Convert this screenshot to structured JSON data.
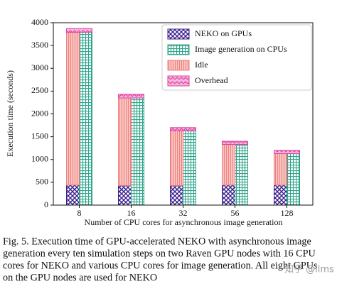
{
  "chart_data": {
    "type": "stacked_bar",
    "categories": [
      "8",
      "16",
      "32",
      "56",
      "128"
    ],
    "series": [
      {
        "name": "NEKO on GPUs",
        "color": "#3b1f8c",
        "pattern": "crosshatch",
        "stack": "left",
        "values": [
          440,
          430,
          430,
          440,
          440
        ]
      },
      {
        "name": "Image generation on CPUs",
        "color": "#2fa58a",
        "pattern": "grid",
        "stack": "right",
        "values": [
          3790,
          2350,
          1630,
          1330,
          1130
        ]
      },
      {
        "name": "Idle",
        "color": "#f08080",
        "pattern": "vertical",
        "stack": "left",
        "values": [
          3350,
          1920,
          1200,
          890,
          690
        ]
      },
      {
        "name": "Overhead",
        "color": "#e040a0",
        "pattern": "zigzag",
        "stack": "both",
        "values": [
          80,
          80,
          70,
          70,
          70
        ]
      }
    ],
    "ylim": [
      0,
      4000
    ],
    "yticks": [
      0,
      500,
      1000,
      1500,
      2000,
      2500,
      3000,
      3500,
      4000
    ],
    "xlabel": "Number of CPU cores for asynchronous image generation",
    "ylabel": "Execution time (seconds)",
    "legend": "upper right"
  },
  "caption": [
    "Fig. 5.  Execution time of GPU-accelerated NEKO with asynchronous image",
    "generation every ten simulation steps on two Raven GPU nodes with 16 CPU",
    "cores for NEKO and various CPU cores for image generation. All eight GPUs",
    "on the GPU nodes are used for NEKO"
  ],
  "watermark": "知乎 @llms"
}
